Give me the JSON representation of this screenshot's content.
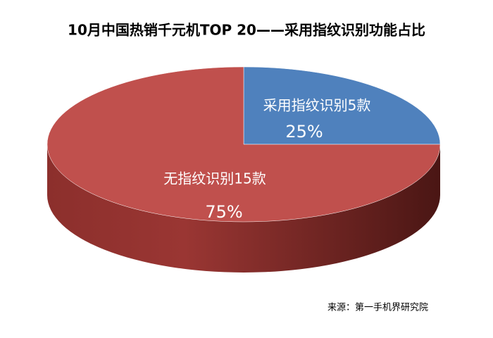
{
  "chart_data": {
    "type": "pie",
    "title": "10月中国热销千元机TOP 20——采用指纹识别功能占比",
    "categories": [
      "采用指纹识别5款",
      "无指纹识别15款"
    ],
    "values": [
      25,
      75
    ],
    "value_labels": [
      "25%",
      "75%"
    ],
    "colors": [
      "#4f81bd",
      "#c0504d"
    ],
    "source": "来源：第一手机界研究院"
  }
}
